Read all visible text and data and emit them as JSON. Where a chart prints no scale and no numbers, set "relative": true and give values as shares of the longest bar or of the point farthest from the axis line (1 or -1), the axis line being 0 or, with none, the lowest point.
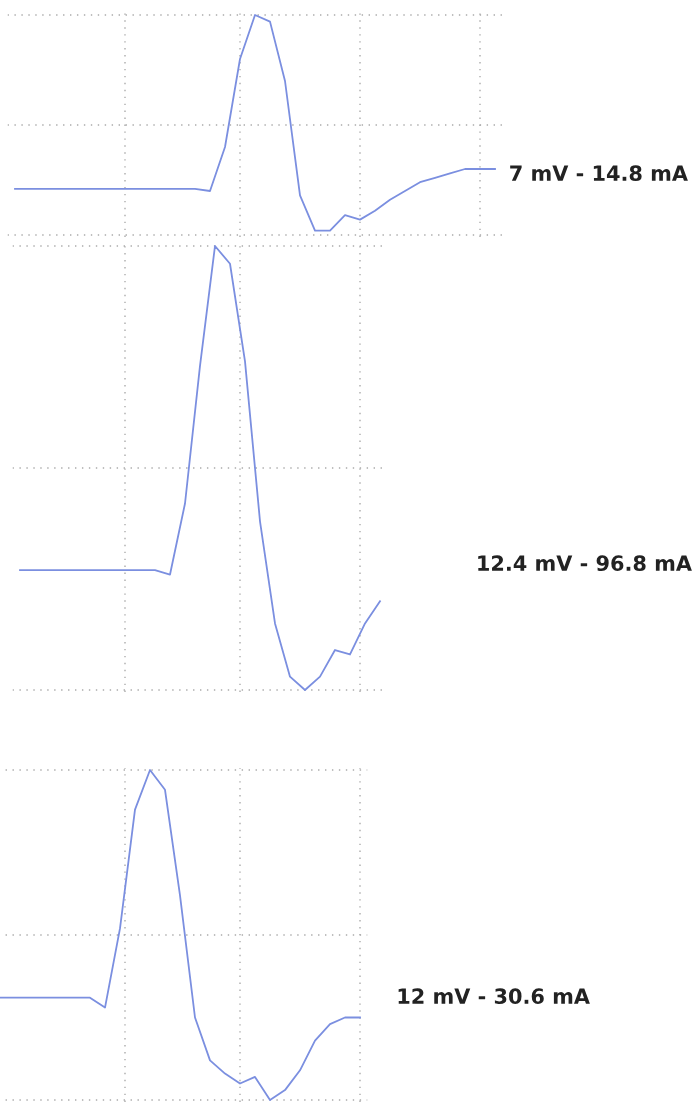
{
  "chart_data": [
    {
      "type": "line",
      "relative": true,
      "color": "#7b8fe0",
      "grid": true,
      "categories": [
        null,
        null,
        null,
        null,
        null,
        null,
        null,
        null,
        null,
        null,
        null,
        null,
        null,
        null,
        null,
        null,
        null,
        null,
        null,
        null,
        null,
        null,
        null,
        null,
        null,
        null,
        null,
        null,
        null,
        null,
        null,
        null,
        null
      ],
      "values": [
        0.21,
        0.21,
        0.21,
        0.21,
        0.21,
        0.21,
        0.21,
        0.21,
        0.21,
        0.21,
        0.21,
        0.21,
        0.21,
        0.2,
        0.4,
        0.8,
        1,
        0.97,
        0.7,
        0.18,
        0.02,
        0.02,
        0.09,
        0.07,
        0.11,
        0.16,
        0.2,
        0.24,
        0.26,
        0.28,
        0.3,
        0.3,
        0.3
      ],
      "annotations": [
        "7 mV - 14.8 mA"
      ]
    },
    {
      "type": "line",
      "relative": true,
      "color": "#7b8fe0",
      "grid": true,
      "categories": [
        null,
        null,
        null,
        null,
        null,
        null,
        null,
        null,
        null,
        null,
        null,
        null,
        null,
        null,
        null,
        null,
        null,
        null,
        null,
        null,
        null,
        null,
        null,
        null,
        null
      ],
      "values": [
        0.27,
        0.27,
        0.27,
        0.27,
        0.27,
        0.27,
        0.27,
        0.27,
        0.27,
        0.27,
        0.26,
        0.42,
        0.73,
        1,
        0.96,
        0.74,
        0.38,
        0.15,
        0.03,
        0,
        0.03,
        0.09,
        0.08,
        0.15,
        0.2
      ],
      "annotations": [
        "12.4 mV - 96.8 mA"
      ]
    },
    {
      "type": "line",
      "relative": true,
      "color": "#7b8fe0",
      "grid": true,
      "categories": [
        null,
        null,
        null,
        null,
        null,
        null,
        null,
        null,
        null,
        null,
        null,
        null,
        null,
        null,
        null,
        null,
        null,
        null,
        null,
        null,
        null,
        null,
        null,
        null,
        null
      ],
      "values": [
        0.31,
        0.31,
        0.31,
        0.31,
        0.31,
        0.31,
        0.31,
        0.28,
        0.52,
        0.88,
        1,
        0.94,
        0.62,
        0.25,
        0.12,
        0.08,
        0.05,
        0.07,
        0,
        0.03,
        0.09,
        0.18,
        0.23,
        0.25,
        0.25
      ],
      "annotations": [
        "12 mV - 30.6 mA"
      ]
    }
  ]
}
